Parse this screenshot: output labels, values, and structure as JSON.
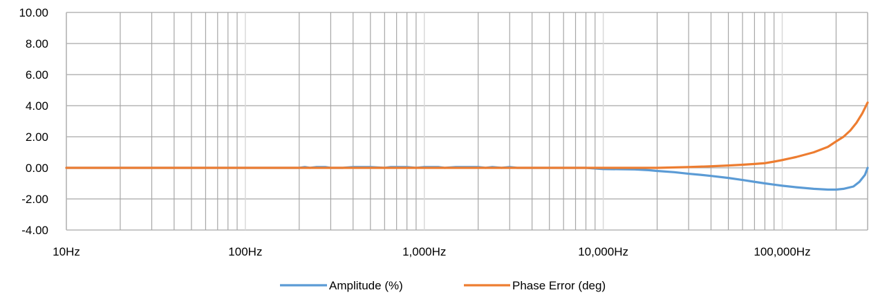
{
  "chart_data": {
    "type": "line",
    "title": "",
    "xlabel": "",
    "ylabel": "",
    "x_scale": "log",
    "xlim": [
      10,
      300000
    ],
    "ylim": [
      -4,
      10
    ],
    "grid": true,
    "legend_position": "bottom",
    "y_ticks": [
      "10.00",
      "8.00",
      "6.00",
      "4.00",
      "2.00",
      "0.00",
      "-2.00",
      "-4.00"
    ],
    "y_tick_values": [
      10,
      8,
      6,
      4,
      2,
      0,
      -2,
      -4
    ],
    "x_ticks": [
      "10Hz",
      "100Hz",
      "1,000Hz",
      "10,000Hz",
      "100,000Hz"
    ],
    "x_tick_values": [
      10,
      100,
      1000,
      10000,
      100000
    ],
    "series": [
      {
        "name": "Amplitude (%)",
        "color": "#5b9bd5",
        "points": [
          [
            10,
            0
          ],
          [
            100,
            0
          ],
          [
            200,
            0
          ],
          [
            215,
            0.05
          ],
          [
            230,
            0
          ],
          [
            250,
            0.05
          ],
          [
            280,
            0.05
          ],
          [
            300,
            0
          ],
          [
            350,
            0
          ],
          [
            400,
            0.05
          ],
          [
            500,
            0.05
          ],
          [
            600,
            0
          ],
          [
            650,
            0.05
          ],
          [
            800,
            0.05
          ],
          [
            900,
            0
          ],
          [
            1000,
            0.05
          ],
          [
            1200,
            0.05
          ],
          [
            1300,
            0
          ],
          [
            1500,
            0.05
          ],
          [
            2000,
            0.05
          ],
          [
            2200,
            0
          ],
          [
            2400,
            0.05
          ],
          [
            2700,
            0
          ],
          [
            3000,
            0.05
          ],
          [
            3300,
            0
          ],
          [
            5000,
            0
          ],
          [
            8000,
            0
          ],
          [
            10000,
            -0.08
          ],
          [
            15000,
            -0.1
          ],
          [
            18000,
            -0.15
          ],
          [
            20000,
            -0.2
          ],
          [
            25000,
            -0.28
          ],
          [
            30000,
            -0.38
          ],
          [
            35000,
            -0.45
          ],
          [
            40000,
            -0.52
          ],
          [
            50000,
            -0.65
          ],
          [
            60000,
            -0.78
          ],
          [
            70000,
            -0.9
          ],
          [
            80000,
            -1.0
          ],
          [
            90000,
            -1.08
          ],
          [
            100000,
            -1.15
          ],
          [
            120000,
            -1.25
          ],
          [
            150000,
            -1.35
          ],
          [
            180000,
            -1.4
          ],
          [
            200000,
            -1.4
          ],
          [
            220000,
            -1.35
          ],
          [
            250000,
            -1.2
          ],
          [
            270000,
            -0.9
          ],
          [
            290000,
            -0.45
          ],
          [
            300000,
            0.0
          ]
        ]
      },
      {
        "name": "Phase Error (deg)",
        "color": "#ed7d31",
        "points": [
          [
            10,
            0
          ],
          [
            100,
            0
          ],
          [
            1000,
            0
          ],
          [
            10000,
            0
          ],
          [
            20000,
            0
          ],
          [
            30000,
            0.05
          ],
          [
            40000,
            0.1
          ],
          [
            50000,
            0.15
          ],
          [
            60000,
            0.2
          ],
          [
            70000,
            0.25
          ],
          [
            80000,
            0.3
          ],
          [
            90000,
            0.4
          ],
          [
            100000,
            0.5
          ],
          [
            120000,
            0.7
          ],
          [
            150000,
            1.0
          ],
          [
            180000,
            1.35
          ],
          [
            200000,
            1.7
          ],
          [
            220000,
            2.0
          ],
          [
            240000,
            2.4
          ],
          [
            260000,
            2.9
          ],
          [
            280000,
            3.5
          ],
          [
            300000,
            4.2
          ]
        ]
      }
    ]
  }
}
